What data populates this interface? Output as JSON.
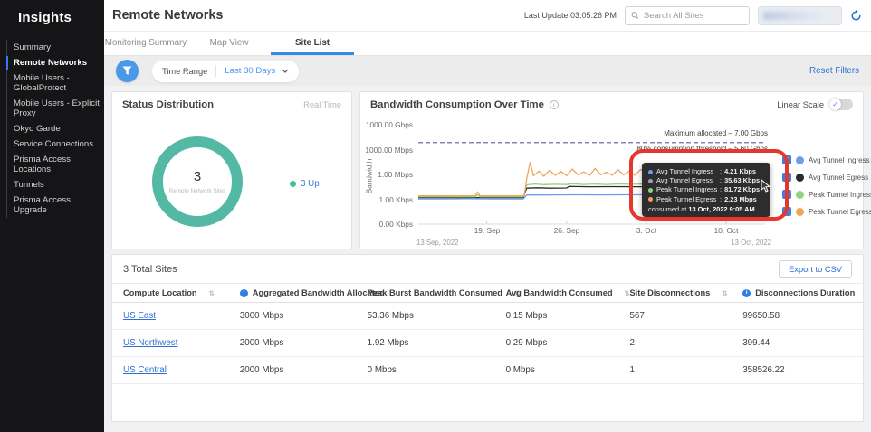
{
  "sidebar": {
    "title": "Insights",
    "items": [
      {
        "label": "Summary",
        "active": false
      },
      {
        "label": "Remote Networks",
        "active": true
      },
      {
        "label": "Mobile Users - GlobalProtect",
        "active": false
      },
      {
        "label": "Mobile Users - Explicit Proxy",
        "active": false
      },
      {
        "label": "Okyo Garde",
        "active": false
      },
      {
        "label": "Service Connections",
        "active": false
      },
      {
        "label": "Prisma Access Locations",
        "active": false
      },
      {
        "label": "Tunnels",
        "active": false
      },
      {
        "label": "Prisma Access Upgrade",
        "active": false
      }
    ]
  },
  "header": {
    "title": "Remote Networks",
    "last_update": "Last Update 03:05:26 PM",
    "search_placeholder": "Search All Sites"
  },
  "tabs": [
    {
      "label": "Monitoring Summary",
      "active": false
    },
    {
      "label": "Map View",
      "active": false
    },
    {
      "label": "Site List",
      "active": true
    }
  ],
  "filter_bar": {
    "time_range_label": "Time Range",
    "time_range_value": "Last 30 Days",
    "reset_label": "Reset Filters"
  },
  "status_card": {
    "title": "Status Distribution",
    "badge": "Real Time",
    "legend_label": "3 Up"
  },
  "bandwidth_card": {
    "title": "Bandwidth Consumption Over Time",
    "linear_scale_label": "Linear Scale",
    "tooltip": {
      "separator": ":",
      "rows": [
        {
          "name": "Avg Tunnel Ingress",
          "value": "4.21 Kbps",
          "color": "#6d9ced"
        },
        {
          "name": "Avg Tunnel Egress",
          "value": "35.63 Kbps",
          "color": "#9aa3ad"
        },
        {
          "name": "Peak Tunnel Ingress",
          "value": "81.72 Kbps",
          "color": "#8fd47e"
        },
        {
          "name": "Peak Tunnel Egress",
          "value": "2.23 Mbps",
          "color": "#f2a45c"
        }
      ],
      "footer_prefix": "consumed at ",
      "footer_time": "13 Oct, 2022 9:05 AM"
    }
  },
  "chart_data": [
    {
      "type": "pie",
      "subtype": "donut",
      "title": "Status Distribution",
      "total": 3,
      "center_label": "Remote Network Sites",
      "segments": [
        {
          "label": "Up",
          "value": 3,
          "color": "#54b9a4"
        }
      ],
      "legend": [
        "3 Up"
      ]
    },
    {
      "type": "line",
      "title": "Bandwidth Consumption Over Time",
      "ylabel": "Bandwidth",
      "y_scale": "log",
      "y_tick_labels": [
        "1000.00 Gbps",
        "1000.00 Mbps",
        "1.00 Mbps",
        "1.00 Kbps",
        "0.00 Kbps"
      ],
      "x_tick_labels": [
        "19. Sep",
        "26. Sep",
        "3. Oct",
        "10. Oct"
      ],
      "x_tick_days": [
        6,
        13,
        20,
        27
      ],
      "x_start_label": "13 Sep, 2022",
      "x_end_label": "13 Oct, 2022",
      "x_unit": "days since 13 Sep 2022",
      "max_allocated_gbps": 7.0,
      "threshold_gbps": 5.6,
      "max_line_label": "Maximum allocated – 7.00 Gbps",
      "threshold_line_label": "80% consumption threshold – 5.60 Gbps",
      "legend_position": "right",
      "series": [
        {
          "name": "Avg Tunnel Ingress",
          "color": "#6d9ced",
          "unit": "Kbps",
          "points": [
            [
              0,
              1.1
            ],
            [
              2,
              1.1
            ],
            [
              4,
              1.15
            ],
            [
              6,
              1.1
            ],
            [
              8,
              1.1
            ],
            [
              9.2,
              1.1
            ],
            [
              9.5,
              3.3
            ],
            [
              12,
              3.4
            ],
            [
              14,
              3.5
            ],
            [
              16,
              3.4
            ],
            [
              18,
              3.5
            ],
            [
              20,
              3.5
            ],
            [
              22,
              3.4
            ],
            [
              23.4,
              3.2
            ],
            [
              24,
              3.5
            ],
            [
              26,
              3.6
            ],
            [
              28,
              3.5
            ],
            [
              30,
              4.21
            ],
            [
              30.4,
              4.21
            ]
          ]
        },
        {
          "name": "Avg Tunnel Egress",
          "color": "#2b2b2b",
          "unit": "Kbps",
          "points": [
            [
              0,
              1.6
            ],
            [
              3,
              1.6
            ],
            [
              6,
              1.6
            ],
            [
              9.2,
              1.6
            ],
            [
              9.5,
              22
            ],
            [
              10.5,
              24
            ],
            [
              11.5,
              22
            ],
            [
              13,
              23
            ],
            [
              13.2,
              35
            ],
            [
              15,
              33
            ],
            [
              17,
              34
            ],
            [
              19,
              33
            ],
            [
              21,
              34
            ],
            [
              23.2,
              33
            ],
            [
              23.5,
              2.5
            ],
            [
              23.8,
              34
            ],
            [
              25,
              33
            ],
            [
              27,
              35
            ],
            [
              29,
              34
            ],
            [
              30,
              35.63
            ],
            [
              30.4,
              35.63
            ]
          ]
        },
        {
          "name": "Peak Tunnel Ingress",
          "color": "#8fd47e",
          "unit": "Kbps",
          "points": [
            [
              0,
              2.0
            ],
            [
              3,
              2.0
            ],
            [
              5,
              2.0
            ],
            [
              5.2,
              3.5
            ],
            [
              5.4,
              2.0
            ],
            [
              7,
              2.0
            ],
            [
              9.2,
              2.0
            ],
            [
              9.5,
              55
            ],
            [
              10.2,
              70
            ],
            [
              11,
              58
            ],
            [
              12,
              65
            ],
            [
              13,
              60
            ],
            [
              13.5,
              75
            ],
            [
              14.5,
              62
            ],
            [
              15.5,
              70
            ],
            [
              16.5,
              62
            ],
            [
              17.5,
              72
            ],
            [
              18.5,
              64
            ],
            [
              19.5,
              70
            ],
            [
              20.5,
              63
            ],
            [
              21.5,
              72
            ],
            [
              22.5,
              66
            ],
            [
              23.2,
              70
            ],
            [
              23.5,
              2.2
            ],
            [
              23.8,
              68
            ],
            [
              24.5,
              72
            ],
            [
              25.5,
              64
            ],
            [
              26.5,
              74
            ],
            [
              27.5,
              66
            ],
            [
              28.5,
              74
            ],
            [
              29.5,
              70
            ],
            [
              30,
              81.72
            ],
            [
              30.4,
              81.72
            ]
          ]
        },
        {
          "name": "Peak Tunnel Egress",
          "color": "#f2a45c",
          "unit": "Kbps",
          "points": [
            [
              0,
              2.6
            ],
            [
              2,
              2.6
            ],
            [
              4,
              2.6
            ],
            [
              5,
              2.7
            ],
            [
              5.2,
              8
            ],
            [
              5.4,
              2.6
            ],
            [
              7,
              2.6
            ],
            [
              9,
              2.6
            ],
            [
              9.3,
              2.8
            ],
            [
              9.5,
              300
            ],
            [
              9.8,
              28000
            ],
            [
              10.1,
              700
            ],
            [
              10.6,
              2500
            ],
            [
              11,
              600
            ],
            [
              11.5,
              3200
            ],
            [
              12,
              800
            ],
            [
              12.5,
              2200
            ],
            [
              13,
              700
            ],
            [
              13.5,
              4500
            ],
            [
              14,
              900
            ],
            [
              14.5,
              2000
            ],
            [
              15,
              750
            ],
            [
              15.5,
              5200
            ],
            [
              16,
              900
            ],
            [
              16.5,
              1800
            ],
            [
              17,
              800
            ],
            [
              17.5,
              3800
            ],
            [
              18,
              850
            ],
            [
              18.5,
              2500
            ],
            [
              19,
              750
            ],
            [
              19.5,
              4200
            ],
            [
              20,
              900
            ],
            [
              20.5,
              2000
            ],
            [
              21,
              800
            ],
            [
              21.5,
              6500
            ],
            [
              22,
              950
            ],
            [
              22.5,
              2800
            ],
            [
              23,
              700
            ],
            [
              23.4,
              120
            ],
            [
              23.8,
              5500
            ],
            [
              24.3,
              900
            ],
            [
              24.8,
              2600
            ],
            [
              25.3,
              800
            ],
            [
              25.8,
              4800
            ],
            [
              26.3,
              900
            ],
            [
              26.8,
              2200
            ],
            [
              27.3,
              850
            ],
            [
              27.8,
              6000
            ],
            [
              28.3,
              950
            ],
            [
              28.8,
              3000
            ],
            [
              29.3,
              850
            ],
            [
              29.7,
              1800
            ],
            [
              30,
              2230
            ],
            [
              30.4,
              2230
            ]
          ]
        }
      ]
    }
  ],
  "table": {
    "title": "3 Total Sites",
    "export_label": "Export to CSV",
    "columns": [
      {
        "label": "Compute Location",
        "info": false,
        "sortable": true
      },
      {
        "label": "Aggregated Bandwidth Allocated",
        "info": true,
        "sortable": false
      },
      {
        "label": "Peak Burst Bandwidth Consumed",
        "info": false,
        "sortable": true
      },
      {
        "label": "Avg Bandwidth Consumed",
        "info": false,
        "sortable": true
      },
      {
        "label": "Site Disconnections",
        "info": false,
        "sortable": true
      },
      {
        "label": "Disconnections Duration",
        "info": true,
        "sortable": false
      }
    ],
    "rows": [
      {
        "location": "US East",
        "allocated": "3000 Mbps",
        "peak_burst": "53.36 Mbps",
        "avg": "0.15 Mbps",
        "disconnections": "567",
        "duration": "99650.58"
      },
      {
        "location": "US Northwest",
        "allocated": "2000 Mbps",
        "peak_burst": "1.92 Mbps",
        "avg": "0.29 Mbps",
        "disconnections": "2",
        "duration": "399.44"
      },
      {
        "location": "US Central",
        "allocated": "2000 Mbps",
        "peak_burst": "0 Mbps",
        "avg": "0 Mbps",
        "disconnections": "1",
        "duration": "358526.22"
      }
    ]
  },
  "colors": {
    "accent_blue": "#2e7cf6",
    "link_blue": "#2e6fd0",
    "donut_teal": "#54b9a4",
    "status_up_green": "#3fbf9a",
    "threshold_dash": "#6a6fa8",
    "annotation_red": "#e5372c",
    "sidebar_bg": "#151517",
    "tooltip_bg": "#2d2d2d"
  }
}
